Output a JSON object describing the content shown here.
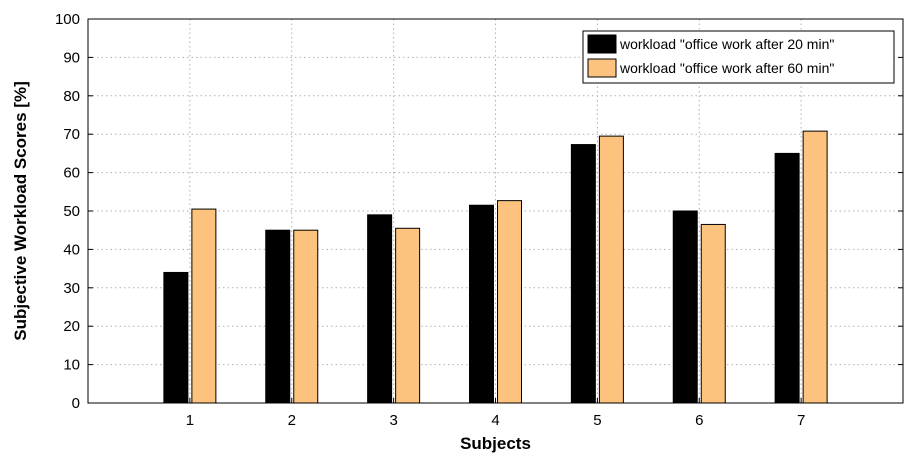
{
  "chart_data": {
    "type": "bar",
    "xlabel": "Subjects",
    "ylabel": "Subjective Workload Scores [%]",
    "categories": [
      "1",
      "2",
      "3",
      "4",
      "5",
      "6",
      "7"
    ],
    "ylim": [
      0,
      100
    ],
    "yticks": [
      0,
      10,
      20,
      30,
      40,
      50,
      60,
      70,
      80,
      90,
      100
    ],
    "grid": true,
    "legend_position": "top-right",
    "series": [
      {
        "name": "workload \"office work after 20 min\"",
        "color": "#000000",
        "values": [
          34,
          45,
          49,
          51.5,
          67.3,
          50,
          65
        ]
      },
      {
        "name": "workload \"office work after 60 min\"",
        "color": "#fdc27d",
        "values": [
          50.5,
          45,
          45.5,
          52.7,
          69.5,
          46.5,
          70.8
        ]
      }
    ]
  }
}
